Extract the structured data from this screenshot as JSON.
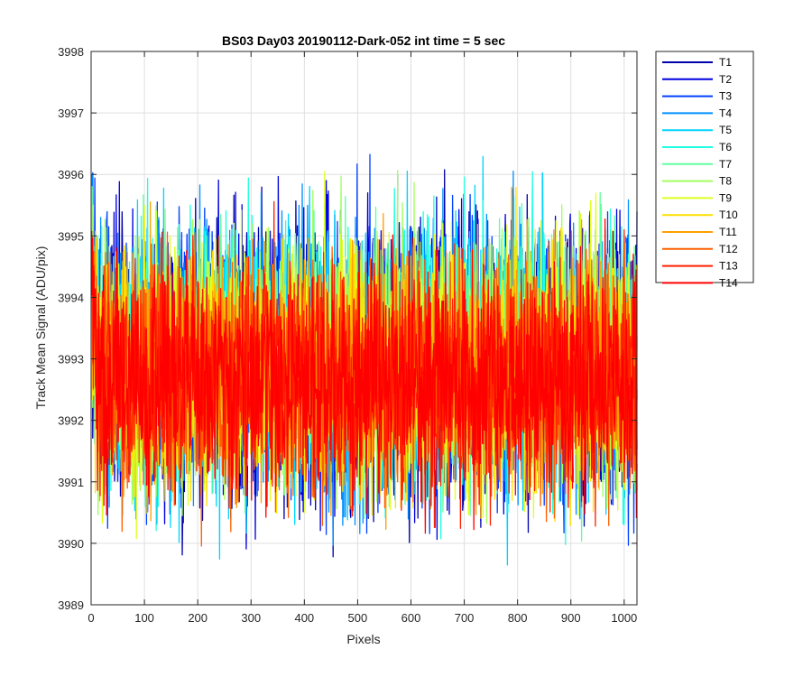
{
  "chart_data": {
    "type": "line",
    "title": "BS03 Day03 20190112-Dark-052 int time = 5 sec",
    "xlabel": "Pixels",
    "ylabel": "Track Mean Signal (ADU/pix)",
    "xlim": [
      0,
      1024
    ],
    "ylim": [
      3989,
      3998
    ],
    "xticks": [
      "0",
      "100",
      "200",
      "300",
      "400",
      "500",
      "600",
      "700",
      "800",
      "900",
      "1000"
    ],
    "yticks": [
      "3989",
      "3990",
      "3991",
      "3992",
      "3993",
      "3994",
      "3995",
      "3996",
      "3997",
      "3998"
    ],
    "grid": true,
    "legend_position": "outside-top-right",
    "series": [
      {
        "name": "T1",
        "color": "#0000aa",
        "mean": 3993.0,
        "noise": 1.15
      },
      {
        "name": "T2",
        "color": "#0000e0",
        "mean": 3993.0,
        "noise": 1.15
      },
      {
        "name": "T3",
        "color": "#0040ff",
        "mean": 3993.0,
        "noise": 1.1
      },
      {
        "name": "T4",
        "color": "#0090ff",
        "mean": 3993.0,
        "noise": 1.1
      },
      {
        "name": "T5",
        "color": "#00d5ff",
        "mean": 3993.0,
        "noise": 1.1
      },
      {
        "name": "T6",
        "color": "#20ffdf",
        "mean": 3993.0,
        "noise": 1.05
      },
      {
        "name": "T7",
        "color": "#60ffa0",
        "mean": 3993.0,
        "noise": 1.05
      },
      {
        "name": "T8",
        "color": "#a0ff60",
        "mean": 3993.0,
        "noise": 1.05
      },
      {
        "name": "T9",
        "color": "#dfff20",
        "mean": 3992.9,
        "noise": 1.05
      },
      {
        "name": "T10",
        "color": "#ffe000",
        "mean": 3992.8,
        "noise": 1.0
      },
      {
        "name": "T11",
        "color": "#ffa000",
        "mean": 3992.8,
        "noise": 1.0
      },
      {
        "name": "T12",
        "color": "#ff6000",
        "mean": 3992.7,
        "noise": 0.95
      },
      {
        "name": "T13",
        "color": "#ff2000",
        "mean": 3992.7,
        "noise": 0.95
      },
      {
        "name": "T14",
        "color": "#ff0000",
        "mean": 3992.6,
        "noise": 0.9
      }
    ]
  }
}
